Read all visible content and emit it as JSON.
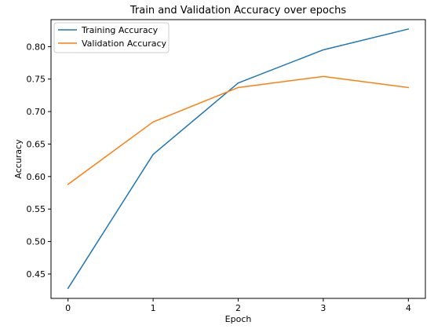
{
  "chart_data": {
    "type": "line",
    "title": "Train and Validation Accuracy over epochs",
    "xlabel": "Epoch",
    "ylabel": "Accuracy",
    "x": [
      0,
      1,
      2,
      3,
      4
    ],
    "xticks": [
      "0",
      "1",
      "2",
      "3",
      "4"
    ],
    "yticks": [
      "0.45",
      "0.50",
      "0.55",
      "0.60",
      "0.65",
      "0.70",
      "0.75",
      "0.80"
    ],
    "xlim": [
      -0.2,
      4.2
    ],
    "ylim": [
      0.4125,
      0.8415
    ],
    "grid": false,
    "legend_position": "top-left",
    "series": [
      {
        "name": "Training Accuracy",
        "color": "#1f77b4",
        "values": [
          0.428,
          0.634,
          0.744,
          0.795,
          0.827
        ]
      },
      {
        "name": "Validation Accuracy",
        "color": "#ff7f0e",
        "values": [
          0.588,
          0.684,
          0.737,
          0.754,
          0.737
        ]
      }
    ]
  }
}
